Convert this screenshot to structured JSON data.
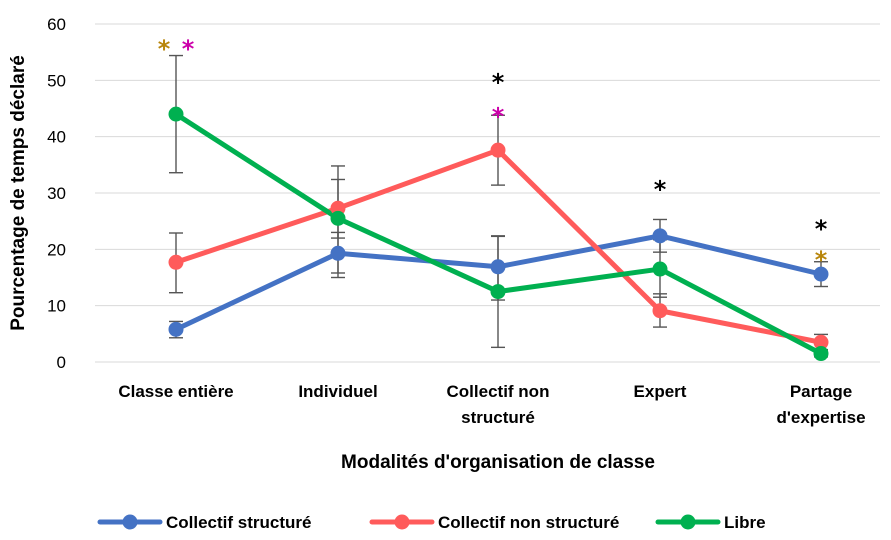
{
  "chart_data": {
    "type": "line",
    "title": "",
    "xlabel": "Modalités d'organisation de classe",
    "ylabel": "Pourcentage de temps déclaré",
    "ylim": [
      0,
      60
    ],
    "yticks": [
      0,
      10,
      20,
      30,
      40,
      50,
      60
    ],
    "grid": true,
    "legend_position": "bottom",
    "categories": [
      [
        "Classe entière"
      ],
      [
        "Individuel"
      ],
      [
        "Collectif non",
        "structuré"
      ],
      [
        "Expert"
      ],
      [
        "Partage",
        "d'expertise"
      ]
    ],
    "series": [
      {
        "name": "Collectif structuré",
        "color": "#4472C4",
        "values": [
          5.8,
          19.3,
          16.9,
          22.4,
          15.6
        ],
        "err_low": [
          4.3,
          15.8,
          11.0,
          19.5,
          13.4
        ],
        "err_high": [
          7.2,
          23.0,
          22.3,
          25.3,
          17.8
        ]
      },
      {
        "name": "Collectif non structuré",
        "color": "#FF5B5B",
        "values": [
          17.7,
          27.3,
          37.6,
          9.1,
          3.5
        ],
        "err_low": [
          12.3,
          22.0,
          31.4,
          6.2,
          2.2
        ],
        "err_high": [
          22.9,
          32.4,
          43.8,
          12.1,
          4.9
        ]
      },
      {
        "name": "Libre",
        "color": "#00B050",
        "values": [
          44.0,
          25.5,
          12.5,
          16.5,
          1.5
        ],
        "err_low": [
          33.6,
          15.0,
          2.6,
          11.5,
          0.9
        ],
        "err_high": [
          54.4,
          34.8,
          22.4,
          21.7,
          2.1
        ]
      }
    ],
    "annotations": [
      {
        "category": 0,
        "y": 57,
        "offset": -12,
        "text": "*",
        "color": "#B8860B"
      },
      {
        "category": 0,
        "y": 57,
        "offset": 12,
        "text": "*",
        "color": "#CC00AA"
      },
      {
        "category": 2,
        "y": 51,
        "offset": 0,
        "text": "*",
        "color": "#000000"
      },
      {
        "category": 2,
        "y": 45,
        "offset": 0,
        "text": "*",
        "color": "#CC00AA"
      },
      {
        "category": 3,
        "y": 32,
        "offset": 0,
        "text": "*",
        "color": "#000000"
      },
      {
        "category": 4,
        "y": 25,
        "offset": 0,
        "text": "*",
        "color": "#000000"
      },
      {
        "category": 4,
        "y": 19.5,
        "offset": 0,
        "text": "*",
        "color": "#B8860B"
      }
    ]
  }
}
